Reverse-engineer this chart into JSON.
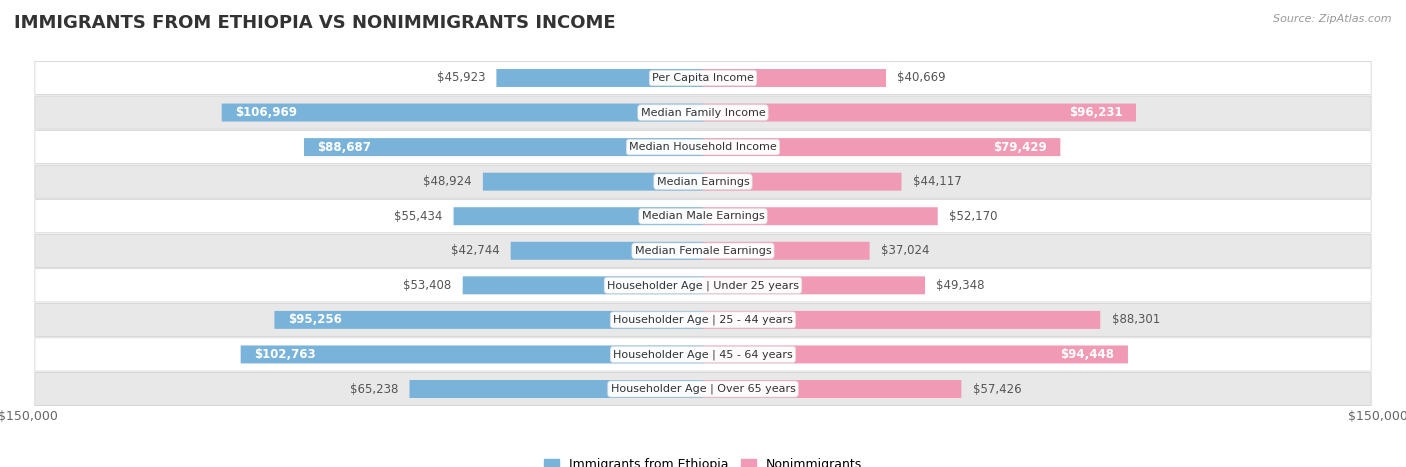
{
  "title": "IMMIGRANTS FROM ETHIOPIA VS NONIMMIGRANTS INCOME",
  "source": "Source: ZipAtlas.com",
  "categories": [
    "Per Capita Income",
    "Median Family Income",
    "Median Household Income",
    "Median Earnings",
    "Median Male Earnings",
    "Median Female Earnings",
    "Householder Age | Under 25 years",
    "Householder Age | 25 - 44 years",
    "Householder Age | 45 - 64 years",
    "Householder Age | Over 65 years"
  ],
  "ethiopia_values": [
    45923,
    106969,
    88687,
    48924,
    55434,
    42744,
    53408,
    95256,
    102763,
    65238
  ],
  "nonimmigrant_values": [
    40669,
    96231,
    79429,
    44117,
    52170,
    37024,
    49348,
    88301,
    94448,
    57426
  ],
  "ethiopia_labels": [
    "$45,923",
    "$106,969",
    "$88,687",
    "$48,924",
    "$55,434",
    "$42,744",
    "$53,408",
    "$95,256",
    "$102,763",
    "$65,238"
  ],
  "nonimmigrant_labels": [
    "$40,669",
    "$96,231",
    "$79,429",
    "$44,117",
    "$52,170",
    "$37,024",
    "$49,348",
    "$88,301",
    "$94,448",
    "$57,426"
  ],
  "ethiopia_color": "#7ab3d9",
  "ethiopia_color_dark": "#3d85c8",
  "nonimmigrant_color": "#f09ab5",
  "nonimmigrant_color_dark": "#e05585",
  "ethiopia_label_inside": [
    false,
    true,
    true,
    false,
    false,
    false,
    false,
    true,
    true,
    false
  ],
  "nonimmigrant_label_inside": [
    false,
    true,
    true,
    false,
    false,
    false,
    false,
    false,
    true,
    false
  ],
  "xlim": 150000,
  "bar_height": 0.52,
  "row_bg_colors": [
    "#ffffff",
    "#e8e8e8",
    "#ffffff",
    "#e8e8e8",
    "#ffffff",
    "#e8e8e8",
    "#ffffff",
    "#e8e8e8",
    "#ffffff",
    "#e8e8e8"
  ],
  "legend_label_ethiopia": "Immigrants from Ethiopia",
  "legend_label_nonimmigrants": "Nonimmigrants",
  "title_fontsize": 13,
  "source_fontsize": 8,
  "axis_label_fontsize": 9,
  "bar_label_fontsize": 8.5,
  "cat_label_fontsize": 8
}
